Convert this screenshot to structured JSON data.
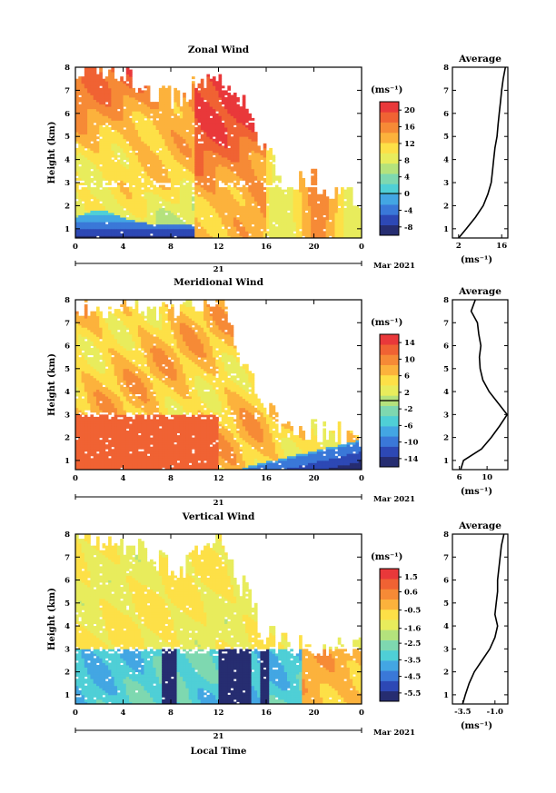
{
  "x_axis_caption": "Local Time",
  "date_label": "Mar 2021",
  "day_label": "21",
  "panels": [
    {
      "title": "Zonal Wind",
      "ylabel": "Height (km)",
      "units": "(ms⁻¹)",
      "avg_title": "Average",
      "avg_xlabel": "(ms⁻¹)",
      "cb_labels": [
        "20",
        "16",
        "12",
        "8",
        "4",
        "0",
        "-4",
        "-8"
      ]
    },
    {
      "title": "Meridional Wind",
      "ylabel": "Height (km)",
      "units": "(ms⁻¹)",
      "avg_title": "Average",
      "avg_xlabel": "(ms⁻¹)",
      "cb_labels": [
        "14",
        "10",
        "6",
        "2",
        "-2",
        "-6",
        "-10",
        "-14"
      ]
    },
    {
      "title": "Vertical Wind",
      "ylabel": "Height (km)",
      "units": "(ms⁻¹)",
      "avg_title": "Average",
      "avg_xlabel": "(ms⁻¹)",
      "cb_labels": [
        "1.5",
        "0.6",
        "-0.5",
        "-1.6",
        "-2.5",
        "-3.5",
        "-4.5",
        "-5.5"
      ]
    }
  ],
  "chart_data": [
    {
      "type": "heatmap",
      "title": "Zonal Wind",
      "ylabel": "Height (km)",
      "xlabel": "",
      "x_ticks": [
        "0",
        "4",
        "8",
        "12",
        "16",
        "20",
        "0"
      ],
      "y_ticks": [
        "1",
        "2",
        "3",
        "4",
        "5",
        "6",
        "7",
        "8"
      ],
      "xlim": [
        0,
        24
      ],
      "ylim": [
        0.6,
        8
      ],
      "colorbar": {
        "min": -10,
        "max": 22,
        "ticks": [
          20,
          16,
          12,
          8,
          4,
          0,
          -4,
          -8
        ],
        "units": "(ms⁻¹)",
        "zero_line": 0
      },
      "colors": [
        "#262d71",
        "#2d48b5",
        "#3a78d8",
        "#43a6e3",
        "#4fcfd6",
        "#7ed8b0",
        "#b4e27c",
        "#e8ec5c",
        "#fde047",
        "#fcb23c",
        "#f68a36",
        "#f06233",
        "#e9383a"
      ],
      "average_profile": {
        "title": "Average",
        "xlabel": "(ms⁻¹)",
        "x_ticks": [
          "2",
          "16"
        ],
        "xlim": [
          0,
          18
        ],
        "heights": [
          0.6,
          1.0,
          1.5,
          2.0,
          2.5,
          3.0,
          3.5,
          4.0,
          4.5,
          5.0,
          5.5,
          6.0,
          6.5,
          7.0,
          7.5,
          8.0
        ],
        "values": [
          2,
          4.5,
          7.5,
          10,
          11.5,
          12.6,
          13,
          13.4,
          13.8,
          14.5,
          14.8,
          15.2,
          15.6,
          16,
          16.5,
          17.2
        ]
      }
    },
    {
      "type": "heatmap",
      "title": "Meridional Wind",
      "ylabel": "Height (km)",
      "xlabel": "",
      "x_ticks": [
        "0",
        "4",
        "8",
        "12",
        "16",
        "20",
        "0"
      ],
      "y_ticks": [
        "1",
        "2",
        "3",
        "4",
        "5",
        "6",
        "7",
        "8"
      ],
      "xlim": [
        0,
        24
      ],
      "ylim": [
        0.6,
        8
      ],
      "colorbar": {
        "min": -16,
        "max": 16,
        "ticks": [
          14,
          10,
          6,
          2,
          -2,
          -6,
          -10,
          -14
        ],
        "units": "(ms⁻¹)",
        "zero_line": 0
      },
      "colors": [
        "#262d71",
        "#2d48b5",
        "#3a78d8",
        "#43a6e3",
        "#4fcfd6",
        "#7ed8b0",
        "#b4e27c",
        "#e8ec5c",
        "#fde047",
        "#fcb23c",
        "#f68a36",
        "#f06233",
        "#e9383a"
      ],
      "average_profile": {
        "title": "Average",
        "xlabel": "(ms⁻¹)",
        "x_ticks": [
          "6",
          "10"
        ],
        "xlim": [
          5,
          13
        ],
        "heights": [
          0.6,
          1.0,
          1.5,
          2.0,
          2.5,
          3.0,
          3.5,
          4.0,
          4.5,
          5.0,
          5.5,
          6.0,
          6.5,
          7.0,
          7.5,
          8.0
        ],
        "values": [
          6.2,
          6.6,
          9.2,
          10.6,
          11.8,
          12.9,
          11.6,
          10.3,
          9.4,
          9.0,
          8.9,
          9.1,
          8.8,
          8.6,
          7.7,
          8.3
        ]
      }
    },
    {
      "type": "heatmap",
      "title": "Vertical Wind",
      "ylabel": "Height (km)",
      "xlabel": "Local Time",
      "x_ticks": [
        "0",
        "4",
        "8",
        "12",
        "16",
        "20",
        "0"
      ],
      "y_ticks": [
        "1",
        "2",
        "3",
        "4",
        "5",
        "6",
        "7",
        "8"
      ],
      "xlim": [
        0,
        24
      ],
      "ylim": [
        0.6,
        8
      ],
      "colorbar": {
        "min": -6,
        "max": 2,
        "ticks": [
          1.5,
          0.6,
          -0.5,
          -1.6,
          -2.5,
          -3.5,
          -4.5,
          -5.5
        ],
        "units": "(ms⁻¹)"
      },
      "colors": [
        "#262d71",
        "#2d48b5",
        "#3a78d8",
        "#43a6e3",
        "#4fcfd6",
        "#7ed8b0",
        "#b4e27c",
        "#e8ec5c",
        "#fde047",
        "#fcb23c",
        "#f68a36",
        "#f06233",
        "#e9383a"
      ],
      "average_profile": {
        "title": "Average",
        "xlabel": "(ms⁻¹)",
        "x_ticks": [
          "-3.5",
          "-1.0"
        ],
        "xlim": [
          -4.3,
          0
        ],
        "heights": [
          0.6,
          1.0,
          1.5,
          2.0,
          2.5,
          3.0,
          3.5,
          4.0,
          4.5,
          5.0,
          5.5,
          6.0,
          6.5,
          7.0,
          7.5,
          8.0
        ],
        "values": [
          -3.5,
          -3.3,
          -3.0,
          -2.6,
          -2.0,
          -1.4,
          -1.0,
          -0.8,
          -1.0,
          -0.9,
          -0.8,
          -0.8,
          -0.7,
          -0.6,
          -0.5,
          -0.3
        ]
      }
    }
  ]
}
